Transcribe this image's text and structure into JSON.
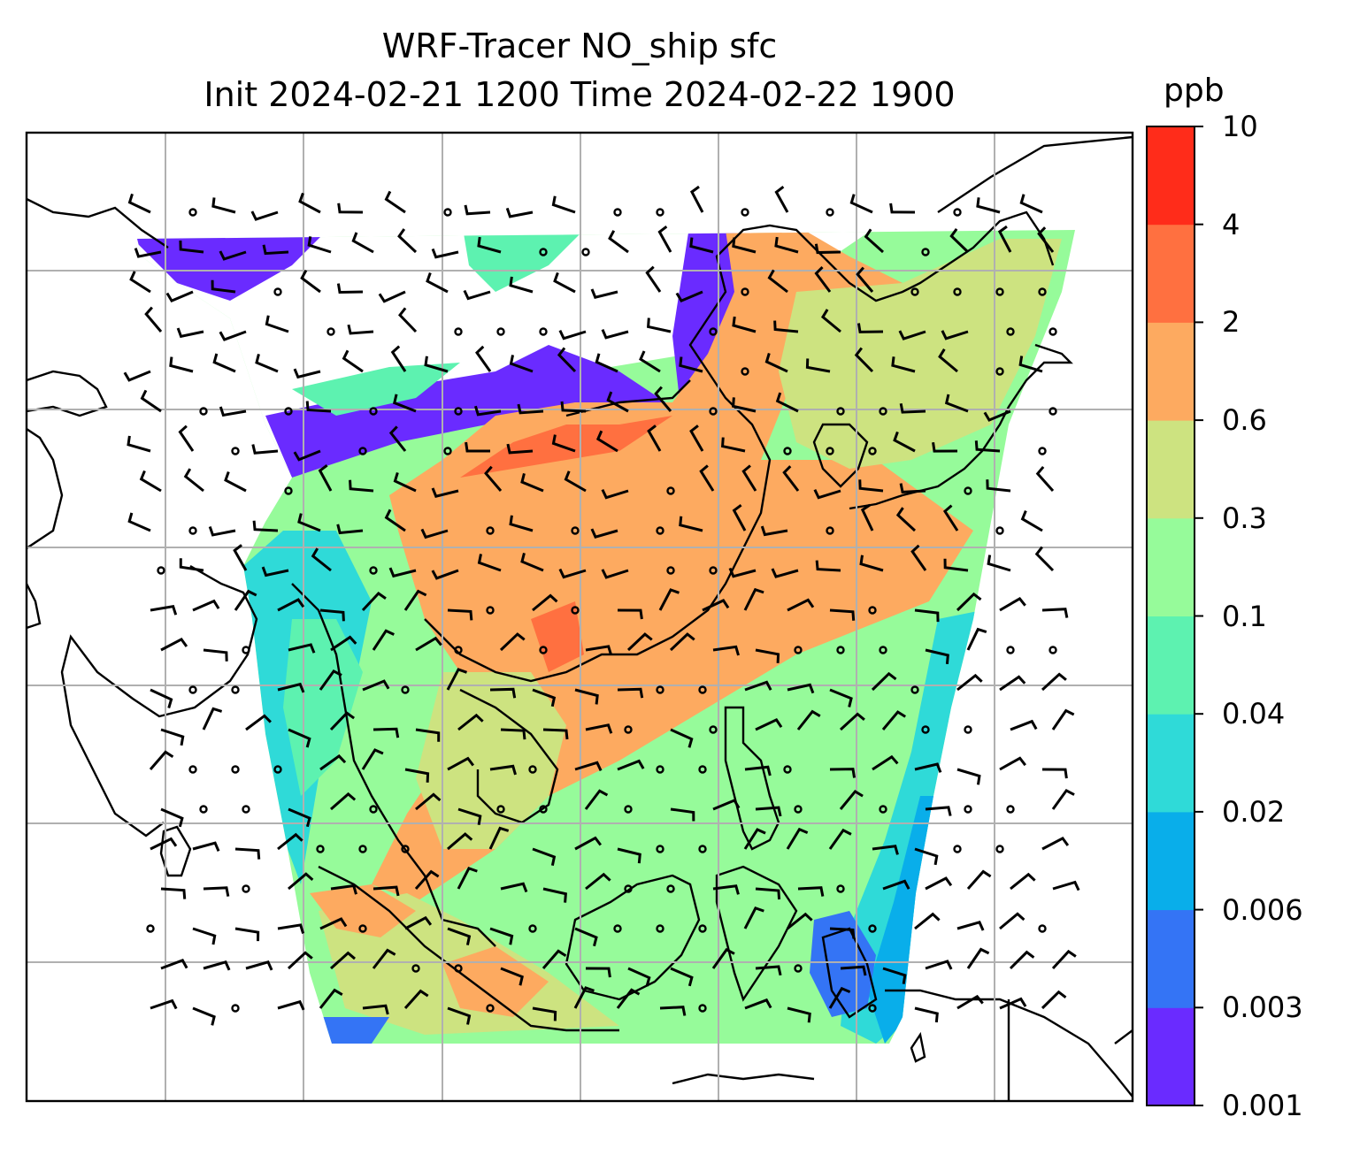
{
  "title": {
    "line1": "WRF-Tracer NO_ship sfc",
    "line2": "Init 2024-02-21 1200 Time 2024-02-22 1900"
  },
  "colorbar": {
    "unit": "ppb",
    "levels": [
      "0.001",
      "0.003",
      "0.006",
      "0.02",
      "0.04",
      "0.1",
      "0.3",
      "0.6",
      "2",
      "4",
      "10"
    ],
    "colors": [
      "#6a2bff",
      "#3474f5",
      "#09aeea",
      "#2fdad8",
      "#5df2b0",
      "#96fb9a",
      "#cde380",
      "#fdaa60",
      "#ff7040",
      "#ff2c1a"
    ]
  },
  "map": {
    "field": "NO_ship",
    "level": "sfc",
    "gridlines": true,
    "wind_barbs": true,
    "coastlines": true
  }
}
